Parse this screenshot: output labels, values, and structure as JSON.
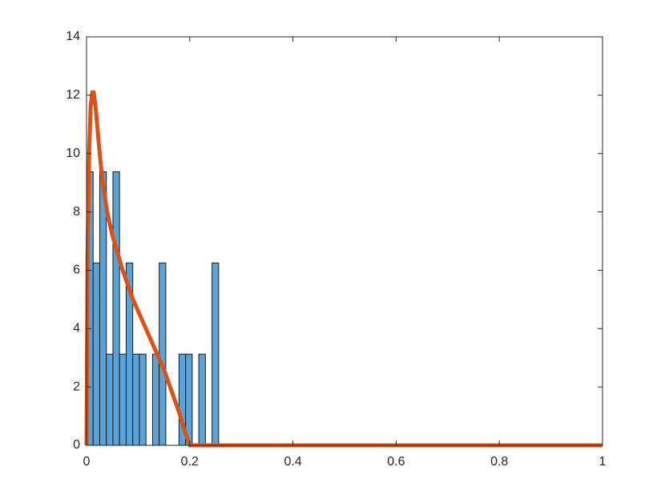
{
  "chart_data": {
    "type": "histogram",
    "bins": [
      0,
      0.0128,
      0.0256,
      0.0384,
      0.0512,
      0.064,
      0.0768,
      0.0896,
      0.1024,
      0.1152,
      0.128,
      0.1408,
      0.1536,
      0.1664,
      0.1792,
      0.192,
      0.2048,
      0.2176,
      0.2304,
      0.2432,
      0.256
    ],
    "values": [
      9.375,
      6.25,
      9.375,
      3.125,
      9.375,
      3.125,
      6.25,
      3.125,
      3.125,
      0,
      3.125,
      6.25,
      0,
      0,
      3.125,
      3.125,
      0,
      3.125,
      0,
      6.25
    ],
    "color": "#5ba3d6",
    "edgecolor": "#1a1a1a",
    "line": {
      "color": "#d95319",
      "x": [
        0,
        0.002,
        0.005,
        0.008,
        0.011,
        0.014,
        0.018,
        0.024,
        0.03,
        0.04,
        0.05,
        0.06,
        0.07,
        0.08,
        0.09,
        0.1,
        0.11,
        0.12,
        0.13,
        0.14,
        0.15,
        0.16,
        0.17,
        0.18,
        0.19,
        0.196,
        0.2,
        0.3,
        0.5,
        0.7,
        1
      ],
      "values": [
        0,
        6.5,
        10,
        11.6,
        12.1,
        12.1,
        11.5,
        10.3,
        9.2,
        8.0,
        7.2,
        6.6,
        6.0,
        5.5,
        5.0,
        4.6,
        4.2,
        3.8,
        3.4,
        3.0,
        2.6,
        2.1,
        1.6,
        1.1,
        0.5,
        0.2,
        0,
        0,
        0,
        0,
        0
      ]
    },
    "xlim": [
      0,
      1
    ],
    "xticks": [
      0,
      0.2,
      0.4,
      0.6,
      0.8,
      1
    ],
    "ylim": [
      0,
      14
    ],
    "yticks": [
      0,
      2,
      4,
      6,
      8,
      10,
      12,
      14
    ]
  }
}
